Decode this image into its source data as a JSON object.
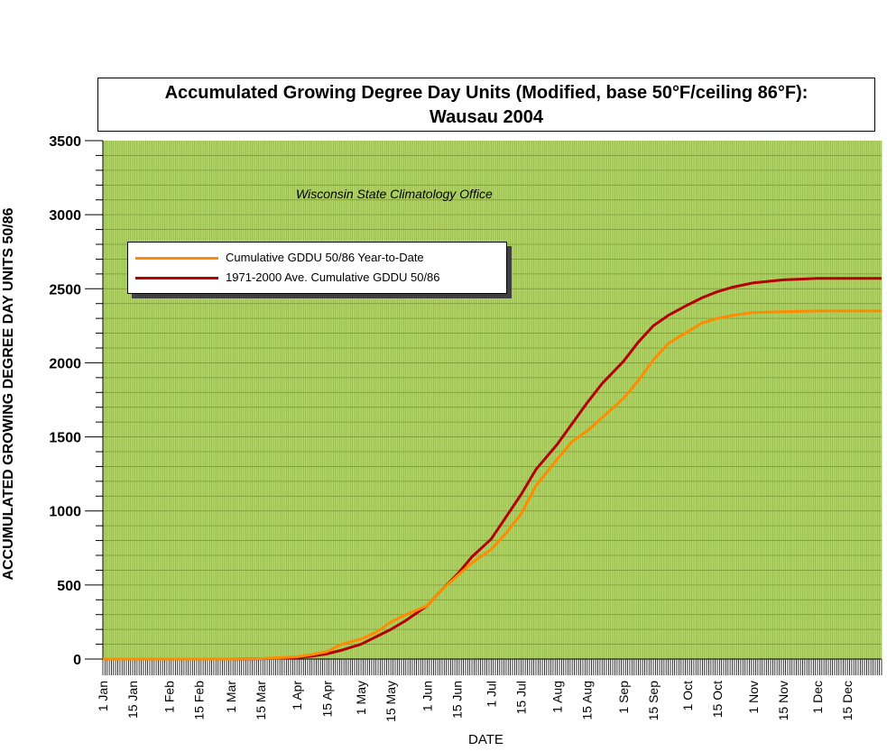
{
  "title_line1": "Accumulated Growing Degree Day Units (Modified, base 50°F/ceiling 86°F):",
  "title_line2": "Wausau 2004",
  "credit": "Wisconsin State Climatology Office",
  "colors": {
    "plot_bg": "#b3d66a",
    "grid": "#8cad3c",
    "ytd": "#ff8c00",
    "avg": "#b30000"
  },
  "chart_data": {
    "type": "line",
    "title": "Accumulated Growing Degree Day Units (Modified, base 50°F/ceiling 86°F): Wausau 2004",
    "xlabel": "DATE",
    "ylabel": "ACCUMULATED GROWING DEGREE DAY UNITS 50/86",
    "ylim": [
      0,
      3500
    ],
    "yticks": [
      "0",
      "500",
      "1000",
      "1500",
      "2000",
      "2500",
      "3000",
      "3500"
    ],
    "xticks": [
      "1 Jan",
      "15 Jan",
      "1 Feb",
      "15 Feb",
      "1 Mar",
      "15 Mar",
      "1 Apr",
      "15 Apr",
      "1 May",
      "15 May",
      "1 Jun",
      "15 Jun",
      "1 Jul",
      "15 Jul",
      "1 Aug",
      "15 Aug",
      "1 Sep",
      "15 Sep",
      "1 Oct",
      "15 Oct",
      "1 Nov",
      "15 Nov",
      "1 Dec",
      "15 Dec"
    ],
    "grid": true,
    "legend_position": "upper-left",
    "series": [
      {
        "name": "Cumulative GDDU 50/86 Year-to-Date",
        "color": "#ff8c00",
        "x": [
          "1 Jan",
          "1 Mar",
          "15 Mar",
          "1 Apr",
          "8 Apr",
          "15 Apr",
          "22 Apr",
          "1 May",
          "8 May",
          "15 May",
          "22 May",
          "1 Jun",
          "8 Jun",
          "15 Jun",
          "22 Jun",
          "1 Jul",
          "8 Jul",
          "15 Jul",
          "22 Jul",
          "1 Aug",
          "8 Aug",
          "15 Aug",
          "22 Aug",
          "1 Sep",
          "8 Sep",
          "15 Sep",
          "22 Sep",
          "1 Oct",
          "8 Oct",
          "15 Oct",
          "22 Oct",
          "1 Nov",
          "15 Nov",
          "1 Dec",
          "31 Dec"
        ],
        "values": [
          0,
          0,
          3,
          15,
          30,
          50,
          100,
          135,
          180,
          250,
          300,
          360,
          470,
          560,
          650,
          740,
          850,
          980,
          1170,
          1350,
          1470,
          1540,
          1630,
          1760,
          1880,
          2020,
          2130,
          2210,
          2270,
          2300,
          2320,
          2340,
          2345,
          2350,
          2350
        ]
      },
      {
        "name": "1971-2000 Ave. Cumulative GDDU 50/86",
        "color": "#b30000",
        "x": [
          "1 Jan",
          "1 Mar",
          "15 Mar",
          "1 Apr",
          "8 Apr",
          "15 Apr",
          "22 Apr",
          "1 May",
          "8 May",
          "15 May",
          "22 May",
          "1 Jun",
          "8 Jun",
          "15 Jun",
          "22 Jun",
          "1 Jul",
          "8 Jul",
          "15 Jul",
          "22 Jul",
          "1 Aug",
          "8 Aug",
          "15 Aug",
          "22 Aug",
          "1 Sep",
          "8 Sep",
          "15 Sep",
          "22 Sep",
          "1 Oct",
          "8 Oct",
          "15 Oct",
          "22 Oct",
          "1 Nov",
          "15 Nov",
          "1 Dec",
          "31 Dec"
        ],
        "values": [
          0,
          0,
          2,
          10,
          20,
          35,
          60,
          100,
          150,
          200,
          260,
          360,
          470,
          570,
          690,
          810,
          960,
          1110,
          1280,
          1450,
          1590,
          1730,
          1860,
          2010,
          2140,
          2250,
          2320,
          2390,
          2440,
          2480,
          2510,
          2540,
          2560,
          2570,
          2570
        ]
      }
    ]
  }
}
